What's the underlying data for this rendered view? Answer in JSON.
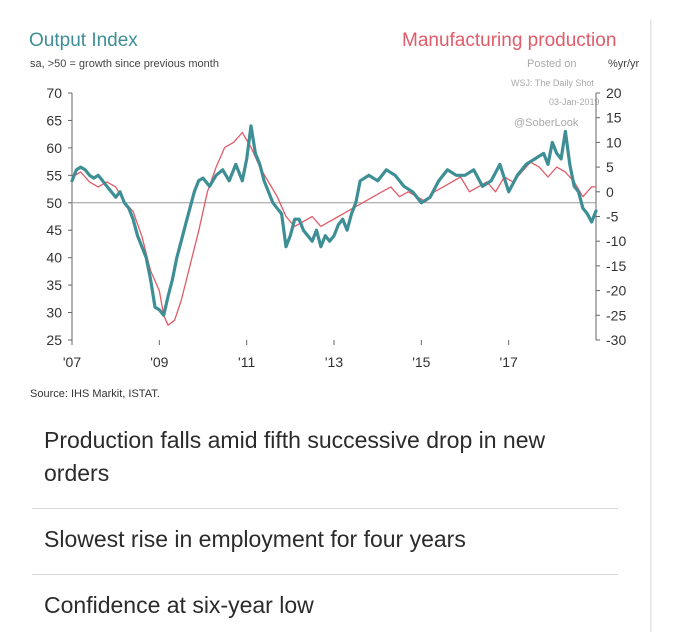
{
  "header": {
    "left_title": "Output Index",
    "right_title": "Manufacturing production",
    "subtitle": "sa, >50 = growth since previous month",
    "right_unit": "%yr/yr"
  },
  "watermark": {
    "posted_on": "Posted on",
    "outlet": "WSJ: The Daily Shot",
    "date": "03-Jan-2019",
    "handle": "@SoberLook"
  },
  "source": "Source: IHS Markit, ISTAT.",
  "headlines": [
    {
      "line1": "Production falls amid fifth successive drop in new",
      "line2": "orders"
    },
    {
      "line1": "Slowest rise in employment for four years"
    },
    {
      "line1": "Confidence at six-year low"
    }
  ],
  "colors": {
    "output_index": "#3d8f95",
    "manufacturing_production": "#e15b68"
  },
  "chart_data": {
    "type": "line",
    "x_tick_labels": [
      "'07",
      "'09",
      "'11",
      "'13",
      "'15",
      "'17"
    ],
    "x_ticks": [
      2007,
      2009,
      2011,
      2013,
      2015,
      2017
    ],
    "xlim": [
      2007,
      2019
    ],
    "left_ylim": [
      25,
      70
    ],
    "left_ticks": [
      25,
      30,
      35,
      40,
      45,
      50,
      55,
      60,
      65,
      70
    ],
    "right_ylim": [
      -30,
      20
    ],
    "right_ticks": [
      -30,
      -25,
      -20,
      -15,
      -10,
      -5,
      0,
      5,
      10,
      15,
      20
    ],
    "reference_line": 50,
    "series": [
      {
        "name": "Output Index",
        "axis": "left",
        "x": [
          2007.0,
          2007.1,
          2007.2,
          2007.3,
          2007.4,
          2007.5,
          2007.6,
          2007.7,
          2007.8,
          2007.9,
          2008.0,
          2008.1,
          2008.2,
          2008.3,
          2008.4,
          2008.5,
          2008.6,
          2008.7,
          2008.8,
          2008.9,
          2009.0,
          2009.1,
          2009.2,
          2009.3,
          2009.4,
          2009.5,
          2009.6,
          2009.7,
          2009.8,
          2009.9,
          2010.0,
          2010.15,
          2010.3,
          2010.45,
          2010.6,
          2010.75,
          2010.9,
          2011.0,
          2011.1,
          2011.2,
          2011.3,
          2011.4,
          2011.5,
          2011.6,
          2011.7,
          2011.8,
          2011.9,
          2012.0,
          2012.1,
          2012.2,
          2012.3,
          2012.4,
          2012.5,
          2012.6,
          2012.7,
          2012.8,
          2012.9,
          2013.0,
          2013.1,
          2013.2,
          2013.3,
          2013.4,
          2013.5,
          2013.6,
          2013.8,
          2014.0,
          2014.2,
          2014.4,
          2014.6,
          2014.8,
          2015.0,
          2015.2,
          2015.4,
          2015.6,
          2015.8,
          2016.0,
          2016.2,
          2016.4,
          2016.6,
          2016.8,
          2017.0,
          2017.2,
          2017.4,
          2017.6,
          2017.8,
          2017.9,
          2018.0,
          2018.1,
          2018.2,
          2018.3,
          2018.4,
          2018.5,
          2018.6,
          2018.7,
          2018.8,
          2018.9,
          2019.0
        ],
        "values": [
          54,
          56,
          56.5,
          56,
          55,
          54.5,
          55,
          54,
          53,
          52,
          51,
          52,
          50,
          49,
          47,
          44,
          42,
          40,
          36,
          31,
          30.5,
          29.5,
          33,
          36,
          40,
          43,
          46,
          49,
          52,
          54,
          54.5,
          53,
          55,
          56,
          54,
          57,
          54,
          58,
          64,
          59,
          57,
          54,
          52,
          50,
          49,
          48,
          42,
          44,
          47,
          47,
          45,
          44,
          43,
          45,
          42,
          44,
          43,
          44,
          46,
          47,
          45,
          48,
          50,
          54,
          55,
          54,
          56,
          55,
          53,
          52,
          50,
          51,
          54,
          56,
          55,
          55,
          56,
          53,
          54,
          57,
          52,
          55,
          57,
          58,
          59,
          57,
          61,
          59,
          58,
          63,
          57,
          53,
          52,
          49,
          48,
          46.5,
          48.5
        ]
      },
      {
        "name": "Manufacturing production",
        "axis": "right",
        "x": [
          2007.0,
          2007.2,
          2007.4,
          2007.6,
          2007.8,
          2008.0,
          2008.2,
          2008.4,
          2008.6,
          2008.8,
          2009.0,
          2009.1,
          2009.2,
          2009.35,
          2009.5,
          2009.7,
          2009.9,
          2010.1,
          2010.3,
          2010.5,
          2010.7,
          2010.9,
          2011.1,
          2011.3,
          2011.5,
          2011.7,
          2011.9,
          2012.1,
          2012.3,
          2012.5,
          2012.7,
          2012.9,
          2013.1,
          2013.3,
          2013.5,
          2013.7,
          2013.9,
          2014.1,
          2014.3,
          2014.5,
          2014.7,
          2014.9,
          2015.1,
          2015.3,
          2015.5,
          2015.7,
          2015.9,
          2016.1,
          2016.3,
          2016.5,
          2016.7,
          2016.9,
          2017.1,
          2017.3,
          2017.5,
          2017.7,
          2017.9,
          2018.1,
          2018.3,
          2018.5,
          2018.7,
          2018.9,
          2019.0
        ],
        "values": [
          3,
          4,
          2,
          1,
          2,
          1,
          -2,
          -4,
          -9,
          -16,
          -20,
          -25,
          -27,
          -26,
          -22,
          -15,
          -8,
          0,
          5,
          9,
          10,
          12,
          9,
          5,
          2,
          -1,
          -5,
          -7,
          -6,
          -5,
          -7,
          -6,
          -5,
          -4,
          -3,
          -2,
          -1,
          0,
          1,
          -1,
          0,
          -1,
          -2,
          0,
          1,
          2,
          3,
          0,
          1,
          2,
          0,
          3,
          2,
          4,
          6,
          5,
          3,
          5,
          4,
          2,
          -1,
          1,
          1
        ]
      }
    ]
  }
}
